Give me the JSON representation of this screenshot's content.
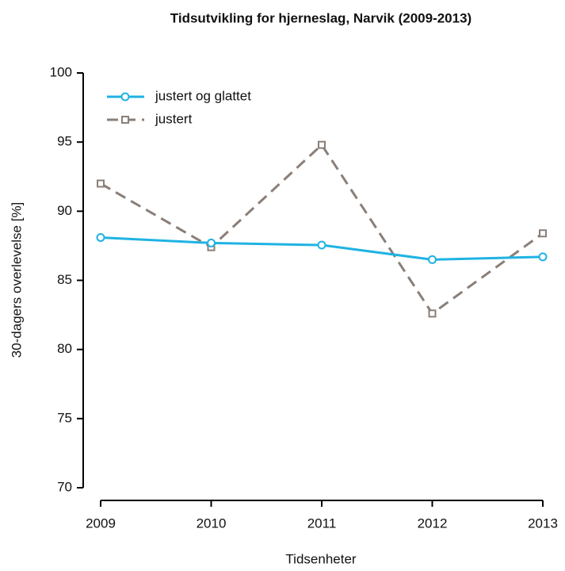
{
  "chart_data": {
    "type": "line",
    "title": "Tidsutvikling for hjerneslag, Narvik (2009-2013)",
    "xlabel": "Tidsenheter",
    "ylabel": "30-dagers overlevelse [%]",
    "x": [
      2009,
      2010,
      2011,
      2012,
      2013
    ],
    "xlim": [
      2009,
      2013
    ],
    "xticks": [
      2009,
      2010,
      2011,
      2012,
      2013
    ],
    "ylim": [
      70,
      100
    ],
    "yticks": [
      70,
      75,
      80,
      85,
      90,
      95,
      100
    ],
    "legend": "top-left",
    "series": [
      {
        "name": "justert og glattet",
        "color": "#1fb3e3",
        "style": "solid",
        "marker": "circle",
        "values": [
          88.1,
          87.7,
          87.55,
          86.5,
          86.7
        ]
      },
      {
        "name": "justert",
        "color": "#8a7f78",
        "style": "dashed",
        "marker": "square",
        "values": [
          92.0,
          87.4,
          94.8,
          82.6,
          88.4
        ]
      }
    ]
  }
}
